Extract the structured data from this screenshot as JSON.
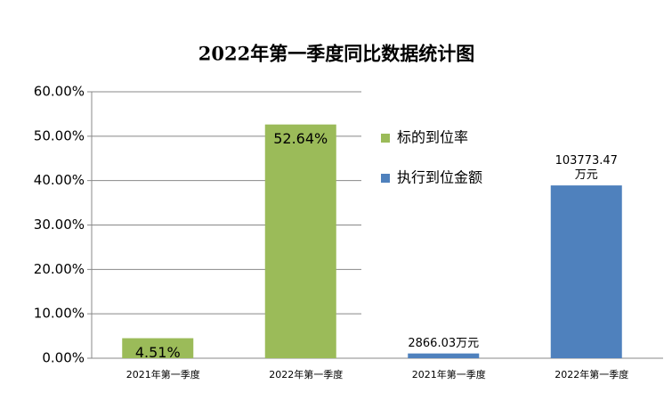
{
  "chart_data": {
    "type": "bar",
    "title": "2022年第一季度同比数据统计图",
    "categories": [
      "2021年第一季度",
      "2022年第一季度",
      "2021年第一季度",
      "2022年第一季度"
    ],
    "series": [
      {
        "name": "标的到位率",
        "color": "#9bbb59",
        "values": [
          4.51,
          52.64,
          null,
          null
        ],
        "value_labels": [
          "4.51%",
          "52.64%",
          null,
          null
        ]
      },
      {
        "name": "执行到位金额",
        "color": "#4f81bd",
        "axis": "y2",
        "values": [
          null,
          null,
          2866.03,
          103773.47
        ],
        "value_labels": [
          null,
          null,
          "2866.03万元",
          "103773.47万元"
        ]
      }
    ],
    "ylim": [
      0,
      60
    ],
    "yticks": [
      {
        "value": 0,
        "label": "0.00%"
      },
      {
        "value": 10,
        "label": "10.00%"
      },
      {
        "value": 20,
        "label": "20.00%"
      },
      {
        "value": 30,
        "label": "30.00%"
      },
      {
        "value": 40,
        "label": "40.00%"
      },
      {
        "value": 50,
        "label": "50.00%"
      },
      {
        "value": 60,
        "label": "60.00%"
      }
    ],
    "y2lim": [
      0,
      160000
    ],
    "grid": true,
    "legend": "right"
  }
}
